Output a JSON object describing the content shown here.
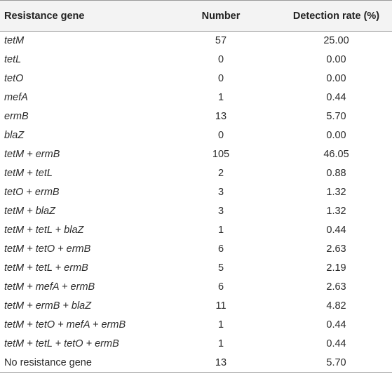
{
  "table": {
    "headers": [
      "Resistance gene",
      "Number",
      "Detection rate (%)"
    ],
    "rows": [
      {
        "gene": "tetM",
        "number": "57",
        "rate": "25.00"
      },
      {
        "gene": "tetL",
        "number": "0",
        "rate": "0.00"
      },
      {
        "gene": "tetO",
        "number": "0",
        "rate": "0.00"
      },
      {
        "gene": "mefA",
        "number": "1",
        "rate": "0.44"
      },
      {
        "gene": "ermB",
        "number": "13",
        "rate": "5.70"
      },
      {
        "gene": "blaZ",
        "number": "0",
        "rate": "0.00"
      },
      {
        "gene": "tetM + ermB",
        "number": "105",
        "rate": "46.05"
      },
      {
        "gene": "tetM + tetL",
        "number": "2",
        "rate": "0.88"
      },
      {
        "gene": "tetO + ermB",
        "number": "3",
        "rate": "1.32"
      },
      {
        "gene": "tetM + blaZ",
        "number": "3",
        "rate": "1.32"
      },
      {
        "gene": "tetM + tetL + blaZ",
        "number": "1",
        "rate": "0.44"
      },
      {
        "gene": "tetM + tetO + ermB",
        "number": "6",
        "rate": "2.63"
      },
      {
        "gene": "tetM + tetL + ermB",
        "number": "5",
        "rate": "2.19"
      },
      {
        "gene": "tetM + mefA + ermB",
        "number": "6",
        "rate": "2.63"
      },
      {
        "gene": "tetM + ermB + blaZ",
        "number": "11",
        "rate": "4.82"
      },
      {
        "gene": "tetM + tetO + mefA + ermB",
        "number": "1",
        "rate": "0.44"
      },
      {
        "gene": "tetM + tetL + tetO + ermB",
        "number": "1",
        "rate": "0.44"
      },
      {
        "gene": "No resistance gene",
        "number": "13",
        "rate": "5.70"
      }
    ]
  }
}
